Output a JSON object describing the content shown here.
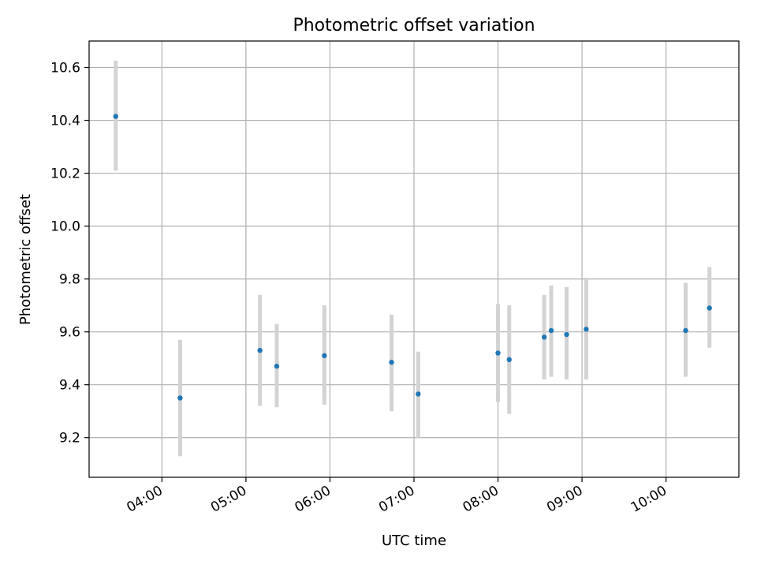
{
  "chart_data": {
    "type": "scatter",
    "title": "Photometric offset variation",
    "xlabel": "UTC time",
    "ylabel": "Photometric offset",
    "x_ticks": [
      "04:00",
      "05:00",
      "06:00",
      "07:00",
      "08:00",
      "09:00",
      "10:00"
    ],
    "y_ticks": [
      "9.2",
      "9.4",
      "9.6",
      "9.8",
      "10.0",
      "10.2",
      "10.4",
      "10.6"
    ],
    "xlim": [
      "03:08",
      "10:52"
    ],
    "ylim": [
      9.05,
      10.7
    ],
    "grid": true,
    "legend": "none",
    "points": [
      {
        "x": "03:27",
        "y": 10.415,
        "yerr_low": 10.21,
        "yerr_high": 10.625
      },
      {
        "x": "04:13",
        "y": 9.35,
        "yerr_low": 9.13,
        "yerr_high": 9.57
      },
      {
        "x": "05:10",
        "y": 9.53,
        "yerr_low": 9.32,
        "yerr_high": 9.74
      },
      {
        "x": "05:22",
        "y": 9.47,
        "yerr_low": 9.315,
        "yerr_high": 9.63
      },
      {
        "x": "05:56",
        "y": 9.51,
        "yerr_low": 9.325,
        "yerr_high": 9.7
      },
      {
        "x": "06:44",
        "y": 9.485,
        "yerr_low": 9.3,
        "yerr_high": 9.665
      },
      {
        "x": "07:03",
        "y": 9.365,
        "yerr_low": 9.2,
        "yerr_high": 9.525
      },
      {
        "x": "08:00",
        "y": 9.52,
        "yerr_low": 9.335,
        "yerr_high": 9.705
      },
      {
        "x": "08:08",
        "y": 9.495,
        "yerr_low": 9.29,
        "yerr_high": 9.7
      },
      {
        "x": "08:33",
        "y": 9.58,
        "yerr_low": 9.42,
        "yerr_high": 9.74
      },
      {
        "x": "08:38",
        "y": 9.605,
        "yerr_low": 9.43,
        "yerr_high": 9.775
      },
      {
        "x": "08:49",
        "y": 9.59,
        "yerr_low": 9.42,
        "yerr_high": 9.77
      },
      {
        "x": "09:03",
        "y": 9.61,
        "yerr_low": 9.42,
        "yerr_high": 9.805
      },
      {
        "x": "10:14",
        "y": 9.605,
        "yerr_low": 9.43,
        "yerr_high": 9.785
      },
      {
        "x": "10:31",
        "y": 9.69,
        "yerr_low": 9.54,
        "yerr_high": 9.845
      }
    ],
    "colors": {
      "point": "#1f77b4",
      "errorbar": "#d3d3d3",
      "grid": "#b0b0b0",
      "axes": "#000000"
    }
  }
}
